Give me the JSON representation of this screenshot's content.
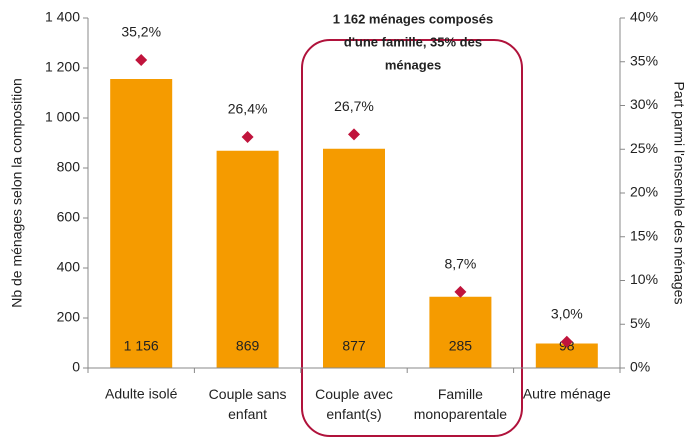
{
  "chart_data": {
    "type": "bar+point",
    "categories": [
      "Adulte isolé",
      "Couple sans enfant",
      "Couple avec enfant(s)",
      "Famille monoparentale",
      "Autre ménage"
    ],
    "series": [
      {
        "name": "Nb de ménages",
        "type": "bar",
        "color": "#f59b00",
        "values": [
          1156,
          869,
          877,
          285,
          98
        ],
        "value_labels": [
          "1 156",
          "869",
          "877",
          "285",
          "98"
        ]
      },
      {
        "name": "Part",
        "type": "point",
        "axis": "y2",
        "color": "#c0143c",
        "values": [
          35.2,
          26.4,
          26.7,
          8.7,
          3.0
        ],
        "value_labels": [
          "35,2%",
          "26,4%",
          "26,7%",
          "8,7%",
          "3,0%"
        ]
      }
    ],
    "ylabel": "Nb de ménages selon la composition",
    "y2label": "Part parmi l'ensemble des ménages",
    "ylim": [
      0,
      1400
    ],
    "yticks": [
      0,
      200,
      400,
      600,
      800,
      {
        "value": 1000,
        "label": "1 000"
      },
      {
        "value": 1200,
        "label": "1 200"
      },
      {
        "value": 1400,
        "label": "1 400"
      }
    ],
    "y2lim": [
      0,
      40
    ],
    "y2ticks": [
      {
        "value": 0,
        "label": "0%"
      },
      {
        "value": 5,
        "label": "5%"
      },
      {
        "value": 10,
        "label": "10%"
      },
      {
        "value": 15,
        "label": "15%"
      },
      {
        "value": 20,
        "label": "20%"
      },
      {
        "value": 25,
        "label": "25%"
      },
      {
        "value": 30,
        "label": "30%"
      },
      {
        "value": 35,
        "label": "35%"
      },
      {
        "value": 40,
        "label": "40%"
      }
    ],
    "annotation": [
      "1 162 ménages composés",
      "d'une famille, 35% des",
      "ménages"
    ]
  }
}
